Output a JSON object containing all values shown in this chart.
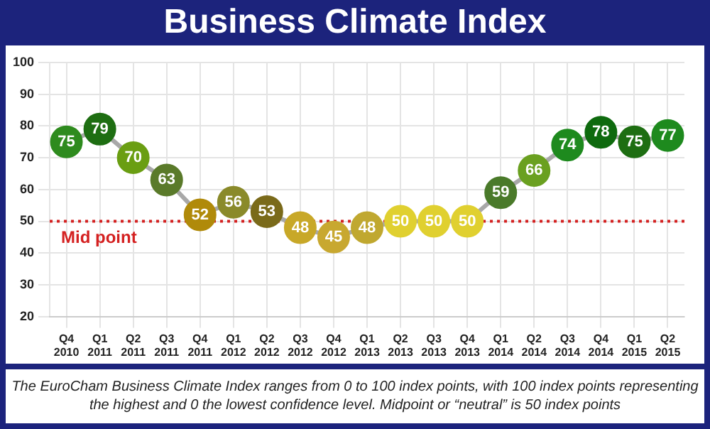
{
  "chart_data": {
    "type": "line",
    "title": "Business Climate Index",
    "categories": [
      "Q4 2010",
      "Q1 2011",
      "Q2 2011",
      "Q3 2011",
      "Q4 2011",
      "Q1 2012",
      "Q2 2012",
      "Q3 2012",
      "Q4 2012",
      "Q1 2013",
      "Q2 2013",
      "Q3 2013",
      "Q4 2013",
      "Q1 2014",
      "Q2 2014",
      "Q3 2014",
      "Q4 2014",
      "Q1 2015",
      "Q2 2015"
    ],
    "series": [
      {
        "color": "#a8a8a8",
        "values": [
          75,
          79,
          70,
          63,
          52,
          56,
          53,
          48,
          45,
          48,
          50,
          50,
          50,
          59,
          66,
          74,
          78,
          75,
          77
        ],
        "colors": [
          "#2e8b1e",
          "#1e6e12",
          "#6a9e12",
          "#5a7a2a",
          "#b08a0a",
          "#8a8a2a",
          "#7a6a1a",
          "#c8a828",
          "#c8a830",
          "#c0a830",
          "#e0d030",
          "#e0d030",
          "#e0d030",
          "#4a7a2a",
          "#6aa020",
          "#1e8a1e",
          "#0e6a0e",
          "#1e6e12",
          "#1e8a1e"
        ]
      }
    ],
    "ylim": [
      20,
      100
    ],
    "yticks": [
      20,
      30,
      40,
      50,
      60,
      70,
      80,
      90,
      100
    ],
    "grid": true,
    "marker": "circle",
    "data_labels": true,
    "legend": false,
    "ref_lines": [
      {
        "axis": "y",
        "value": 50,
        "label": "Mid point",
        "color": "#d42020",
        "line_style": "dotted"
      }
    ],
    "annotations": [
      "The EuroCham Business Climate Index ranges from 0 to 100 index points, with 100 index points representing the highest and 0 the lowest confidence level. Midpoint or “neutral” is 50 index points"
    ]
  }
}
